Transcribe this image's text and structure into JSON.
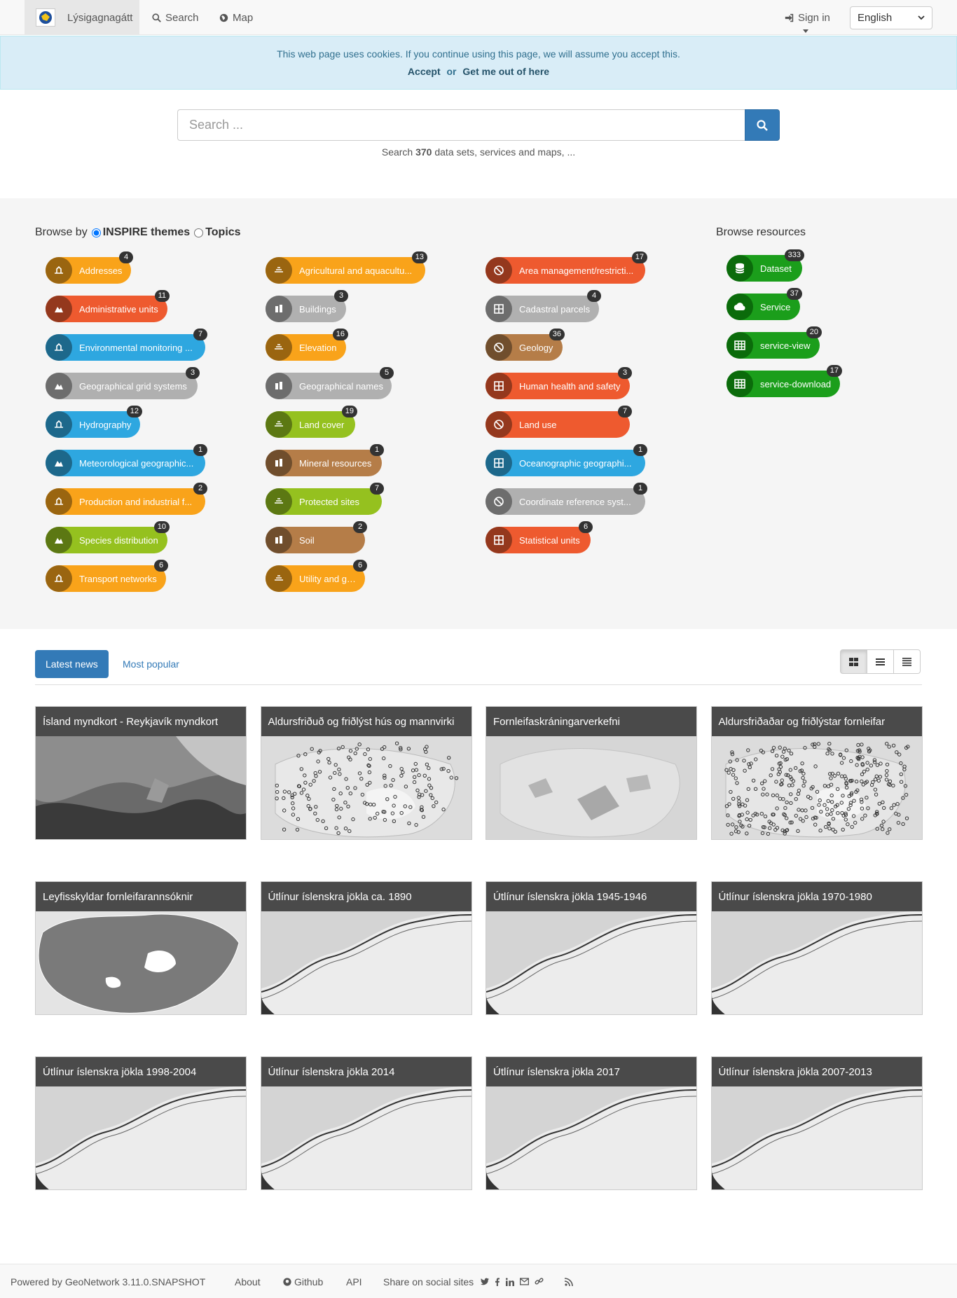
{
  "navbar": {
    "brand": "Lýsigagnagátt",
    "search": "Search",
    "map": "Map",
    "signin": "Sign in",
    "language": "English"
  },
  "cookie": {
    "message": "This web page uses cookies. If you continue using this page, we will assume you accept this.",
    "accept": "Accept",
    "or": "or",
    "out": "Get me out of here"
  },
  "search": {
    "placeholder": "Search ...",
    "info_prefix": "Search",
    "count": "370",
    "info_suffix": "data sets, services and maps, ..."
  },
  "browse": {
    "label": "Browse by",
    "option_inspire": "INSPIRE themes",
    "option_topics": "Topics",
    "resources_title": "Browse resources",
    "themes": [
      {
        "label": "Addresses",
        "count": "4",
        "color": "#f9a31a",
        "icon": "addresses-icon"
      },
      {
        "label": "Agricultural and aquacultu...",
        "count": "13",
        "color": "#f9a31a",
        "icon": "agricultural-icon"
      },
      {
        "label": "Area management/restricti...",
        "count": "17",
        "color": "#ee5a2f",
        "icon": "area-management-icon"
      },
      {
        "label": "Administrative units",
        "count": "11",
        "color": "#ee5a2f",
        "icon": "administrative-units-icon"
      },
      {
        "label": "Buildings",
        "count": "3",
        "color": "#b0b0b0",
        "icon": "buildings-icon"
      },
      {
        "label": "Cadastral parcels",
        "count": "4",
        "color": "#b0b0b0",
        "icon": "cadastral-parcels-icon"
      },
      {
        "label": "Environmental monitoring ...",
        "count": "7",
        "color": "#2ea7e0",
        "icon": "environmental-monitoring-icon"
      },
      {
        "label": "Elevation",
        "count": "16",
        "color": "#f9a31a",
        "icon": "elevation-icon"
      },
      {
        "label": "Geology",
        "count": "36",
        "color": "#b57d48",
        "icon": "geology-icon"
      },
      {
        "label": "Geographical grid systems",
        "count": "3",
        "color": "#b0b0b0",
        "icon": "grid-systems-icon"
      },
      {
        "label": "Geographical names",
        "count": "5",
        "color": "#b0b0b0",
        "icon": "geographical-names-icon"
      },
      {
        "label": "Human health and safety",
        "count": "3",
        "color": "#ee5a2f",
        "icon": "human-health-icon"
      },
      {
        "label": "Hydrography",
        "count": "12",
        "color": "#2ea7e0",
        "icon": "hydrography-icon"
      },
      {
        "label": "Land cover",
        "count": "19",
        "color": "#95c11f",
        "icon": "land-cover-icon"
      },
      {
        "label": "Land use",
        "count": "7",
        "color": "#ee5a2f",
        "icon": "land-use-icon"
      },
      {
        "label": "Meteorological geographic...",
        "count": "1",
        "color": "#2ea7e0",
        "icon": "meteorological-icon"
      },
      {
        "label": "Mineral resources",
        "count": "1",
        "color": "#b57d48",
        "icon": "mineral-resources-icon"
      },
      {
        "label": "Oceanographic geographi...",
        "count": "1",
        "color": "#2ea7e0",
        "icon": "oceanographic-icon"
      },
      {
        "label": "Production and industrial f...",
        "count": "2",
        "color": "#f9a31a",
        "icon": "production-industrial-icon"
      },
      {
        "label": "Protected sites",
        "count": "7",
        "color": "#95c11f",
        "icon": "protected-sites-icon"
      },
      {
        "label": "Coordinate reference syst...",
        "count": "1",
        "color": "#b0b0b0",
        "icon": "coordinate-reference-icon"
      },
      {
        "label": "Species distribution",
        "count": "10",
        "color": "#95c11f",
        "icon": "species-distribution-icon"
      },
      {
        "label": "Soil",
        "count": "2",
        "color": "#b57d48",
        "icon": "soil-icon"
      },
      {
        "label": "Statistical units",
        "count": "6",
        "color": "#ee5a2f",
        "icon": "statistical-units-icon"
      },
      {
        "label": "Transport networks",
        "count": "6",
        "color": "#f9a31a",
        "icon": "transport-networks-icon"
      },
      {
        "label": "Utility and governmental s...",
        "count": "6",
        "color": "#f9a31a",
        "icon": "utility-governmental-icon"
      }
    ],
    "resources": [
      {
        "label": "Dataset",
        "count": "333",
        "icon": "database-icon"
      },
      {
        "label": "Service",
        "count": "37",
        "icon": "cloud-icon"
      },
      {
        "label": "service-view",
        "count": "20",
        "icon": "table-icon"
      },
      {
        "label": "service-download",
        "count": "17",
        "icon": "table-icon"
      }
    ]
  },
  "news": {
    "tab_latest": "Latest news",
    "tab_popular": "Most popular",
    "cards": [
      {
        "title": "Ísland myndkort - Reykjavík myndkort",
        "thumb": "aerial"
      },
      {
        "title": "Aldursfriðuð og friðlýst hús og mannvirki",
        "thumb": "points"
      },
      {
        "title": "Fornleifaskráningarverkefni",
        "thumb": "areas"
      },
      {
        "title": "Aldursfriðaðar og friðlýstar fornleifar",
        "thumb": "points-dense"
      },
      {
        "title": "Leyfisskyldar fornleifarannsóknir",
        "thumb": "iceland"
      },
      {
        "title": "Útlínur íslenskra jökla ca. 1890",
        "thumb": "glacier"
      },
      {
        "title": "Útlínur íslenskra jökla 1945-1946",
        "thumb": "glacier"
      },
      {
        "title": "Útlínur íslenskra jökla 1970-1980",
        "thumb": "glacier"
      },
      {
        "title": "Útlínur íslenskra jökla 1998-2004",
        "thumb": "glacier"
      },
      {
        "title": "Útlínur íslenskra jökla 2014",
        "thumb": "glacier"
      },
      {
        "title": "Útlínur íslenskra jökla 2017",
        "thumb": "glacier"
      },
      {
        "title": "Útlínur íslenskra jökla 2007-2013",
        "thumb": "glacier"
      }
    ]
  },
  "footer": {
    "powered": "Powered by GeoNetwork 3.11.0.SNAPSHOT",
    "about": "About",
    "github": "Github",
    "api": "API",
    "share": "Share on social sites"
  },
  "colors": {
    "primary": "#337ab7",
    "resource_green": "#1b9e1b",
    "info_bg": "#d9edf7"
  }
}
